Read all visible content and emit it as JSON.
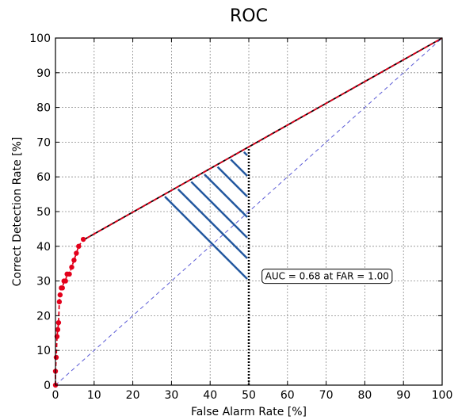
{
  "chart_data": {
    "type": "line",
    "title": "ROC",
    "xlabel": "False Alarm Rate [%]",
    "ylabel": "Correct Detection Rate [%]",
    "xlim": [
      0,
      100
    ],
    "ylim": [
      0,
      100
    ],
    "xticks": [
      "0",
      "10",
      "20",
      "30",
      "40",
      "50",
      "60",
      "70",
      "80",
      "90",
      "100"
    ],
    "yticks": [
      "0",
      "10",
      "20",
      "30",
      "40",
      "50",
      "60",
      "70",
      "80",
      "90",
      "100"
    ],
    "grid": true,
    "series": [
      {
        "style": "red dashed with dots",
        "color": "#e3001b",
        "x": [
          0,
          0,
          0.2,
          0.4,
          0.6,
          0.8,
          1.0,
          1.2,
          1.5,
          1.8,
          2.2,
          2.6,
          3.0,
          3.6,
          4.2,
          4.8,
          5.4,
          6.0,
          7.2
        ],
        "y": [
          0,
          4,
          8,
          14,
          16,
          18,
          24,
          26,
          28,
          28,
          30,
          30,
          32,
          32,
          34,
          36,
          38,
          40,
          42
        ]
      },
      {
        "style": "black line",
        "color": "#000000",
        "x": [
          7.5,
          100
        ],
        "y": [
          42,
          100
        ]
      },
      {
        "style": "blue dashed diagonal",
        "color": "#5b5bd6",
        "x": [
          0,
          100
        ],
        "y": [
          0,
          100
        ]
      }
    ],
    "shaded_region": {
      "far_max": 50,
      "hatch_color": "#23589f",
      "boundary_color": "#000000"
    },
    "annotation": {
      "text": "AUC = 0.68 at FAR = 1.00",
      "x": 53,
      "y": 30
    }
  }
}
